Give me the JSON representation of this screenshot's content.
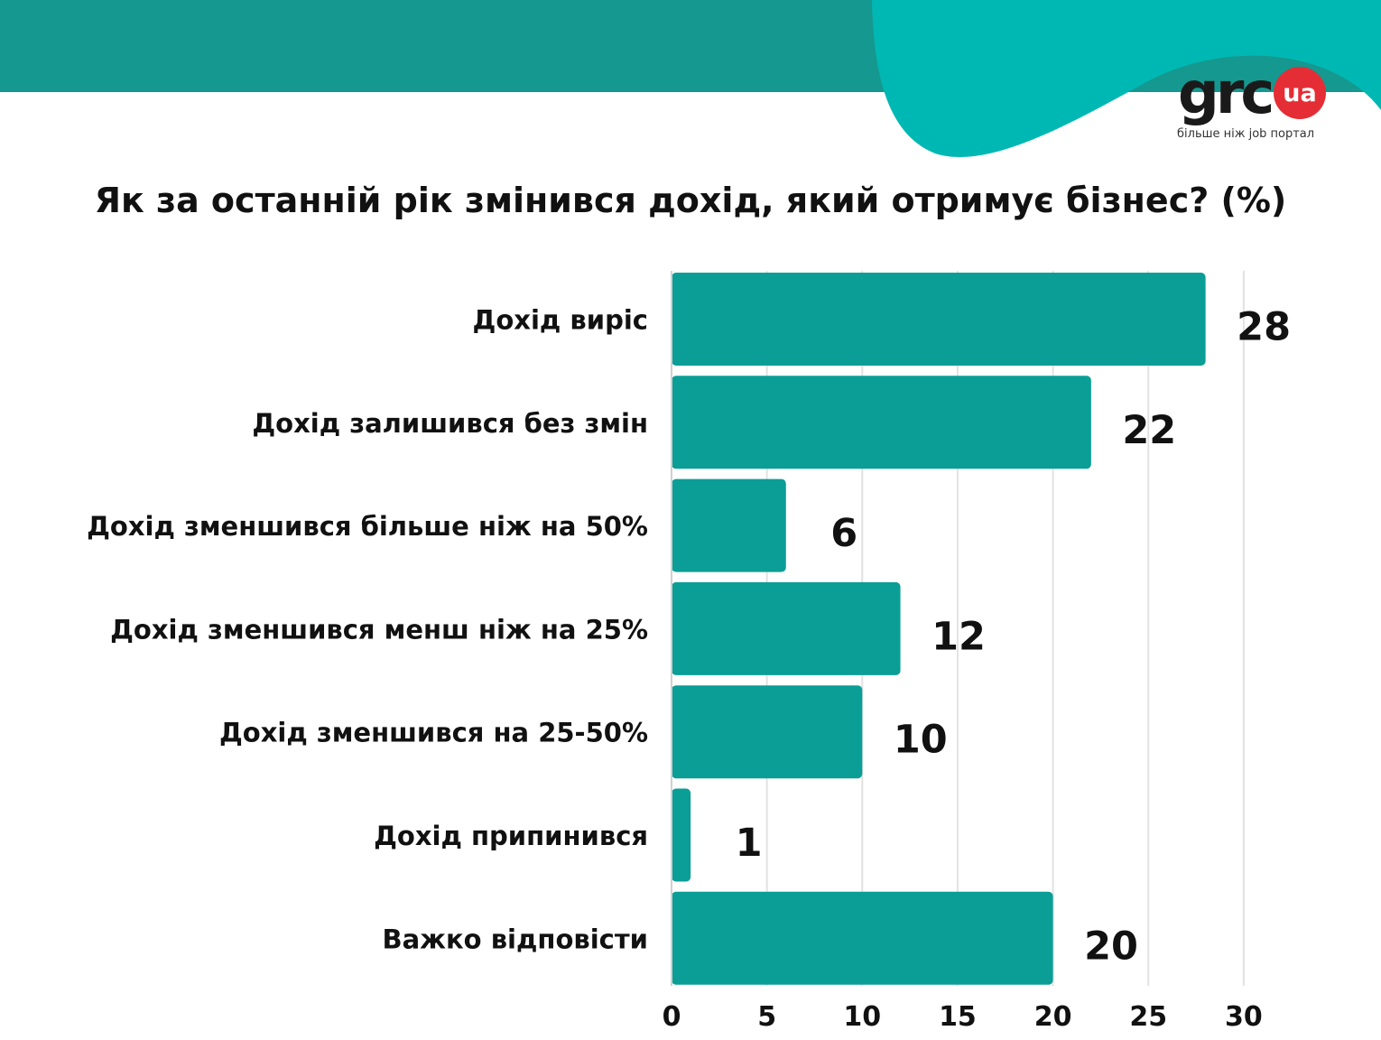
{
  "brand": {
    "logo_text": "grc",
    "logo_badge": "ua",
    "tagline": "більше ніж job портал"
  },
  "colors": {
    "bar": "#0a9e96",
    "banner_dark": "#15988f",
    "banner_light": "#00b8b3",
    "logo_badge": "#e52d36",
    "text": "#111111",
    "grid": "#e2e2e2"
  },
  "chart_data": {
    "type": "bar",
    "orientation": "horizontal",
    "title": "Як за останній рік змінився дохід, який отримує бізнес? (%)",
    "categories": [
      "Дохід виріс",
      "Дохід залишився без змін",
      "Дохід зменшився більше ніж на 50%",
      "Дохід зменшився менш ніж на 25%",
      "Дохід зменшився на 25-50%",
      "Дохід припинився",
      "Важко відповісти"
    ],
    "values": [
      28,
      22,
      6,
      12,
      10,
      1,
      20
    ],
    "data_labels": [
      "28",
      "22",
      "6",
      "12",
      "10",
      "1",
      "20"
    ],
    "xlim": [
      0,
      30
    ],
    "x_ticks": [
      0,
      5,
      10,
      15,
      20,
      25,
      30
    ],
    "grid": true,
    "legend": "none"
  }
}
